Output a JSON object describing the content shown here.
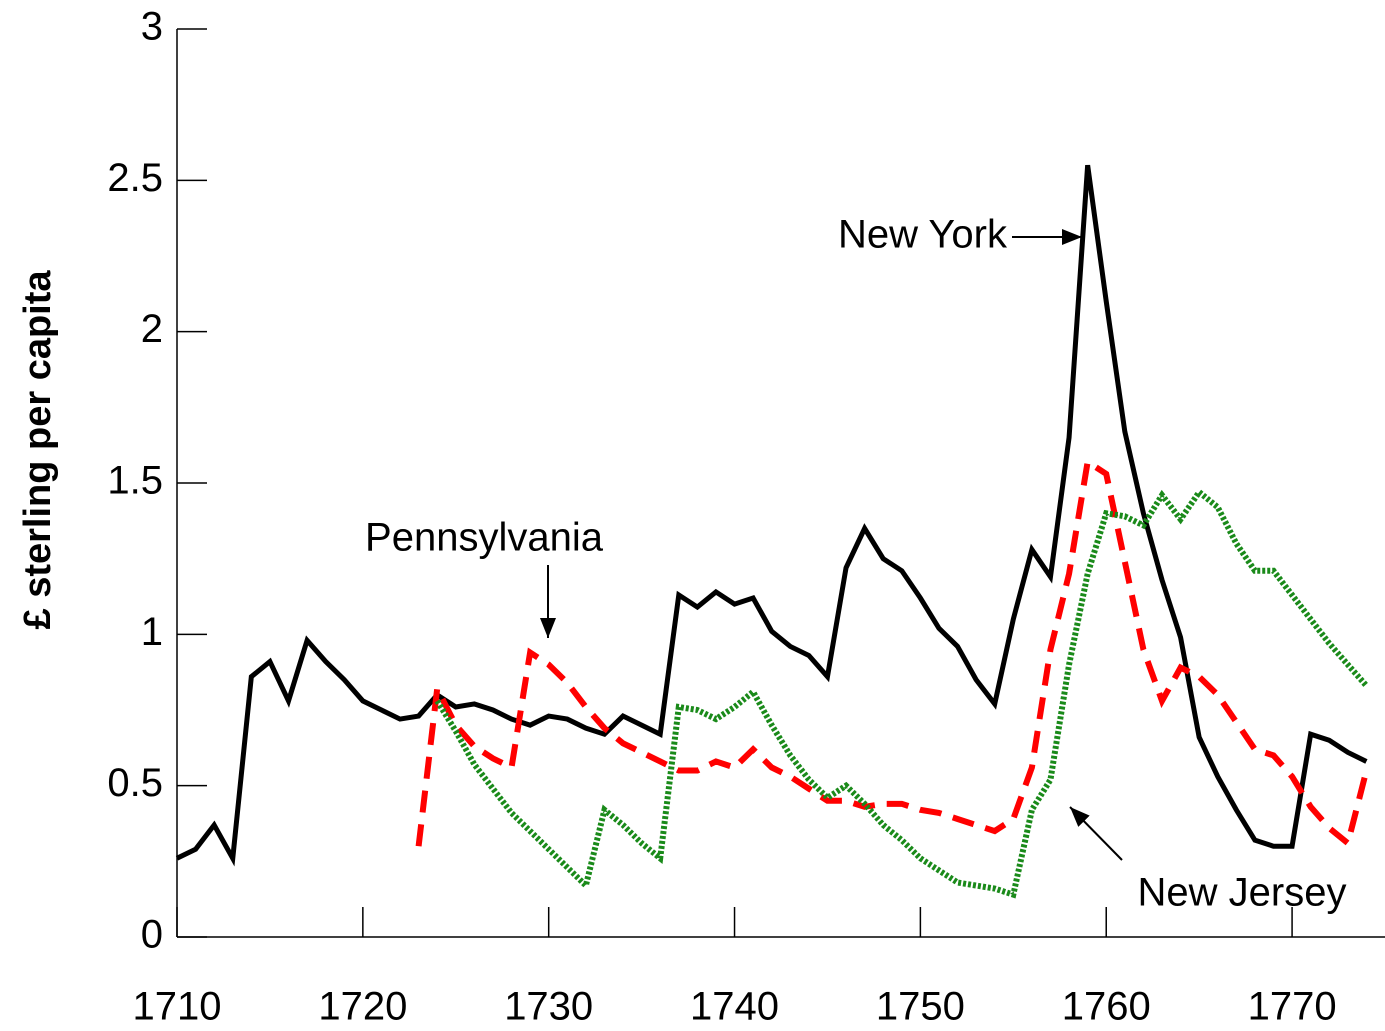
{
  "chart_data": {
    "type": "line",
    "y_label": "£ sterling per capita",
    "x": [
      1710,
      1711,
      1712,
      1713,
      1714,
      1715,
      1716,
      1717,
      1718,
      1719,
      1720,
      1721,
      1722,
      1723,
      1724,
      1725,
      1726,
      1727,
      1728,
      1729,
      1730,
      1731,
      1732,
      1733,
      1734,
      1735,
      1736,
      1737,
      1738,
      1739,
      1740,
      1741,
      1742,
      1743,
      1744,
      1745,
      1746,
      1747,
      1748,
      1749,
      1750,
      1751,
      1752,
      1753,
      1754,
      1755,
      1756,
      1757,
      1758,
      1759,
      1760,
      1761,
      1762,
      1763,
      1764,
      1765,
      1766,
      1767,
      1768,
      1769,
      1770,
      1771,
      1772,
      1773,
      1774
    ],
    "series": [
      {
        "color": "#000000",
        "dash": "solid",
        "values": [
          0.26,
          0.29,
          0.37,
          0.26,
          0.86,
          0.91,
          0.78,
          0.98,
          0.91,
          0.85,
          0.78,
          0.75,
          0.72,
          0.73,
          0.8,
          0.76,
          0.77,
          0.75,
          0.72,
          0.7,
          0.73,
          0.72,
          0.69,
          0.67,
          0.73,
          0.7,
          0.67,
          1.13,
          1.09,
          1.14,
          1.1,
          1.12,
          1.01,
          0.96,
          0.93,
          0.86,
          1.22,
          1.35,
          1.25,
          1.21,
          1.12,
          1.02,
          0.96,
          0.85,
          0.77,
          1.05,
          1.28,
          1.19,
          1.65,
          2.55,
          2.1,
          1.67,
          1.4,
          1.18,
          0.99,
          0.66,
          0.53,
          0.42,
          0.32,
          0.3,
          0.3,
          0.67,
          0.65,
          0.61,
          0.58
        ]
      },
      {
        "color": "#ff0000",
        "dash": "dashed",
        "values": [
          null,
          null,
          null,
          null,
          null,
          null,
          null,
          null,
          null,
          null,
          null,
          null,
          null,
          0.3,
          0.82,
          0.7,
          0.63,
          0.59,
          0.56,
          0.94,
          0.9,
          0.84,
          0.76,
          0.69,
          0.64,
          0.61,
          0.58,
          0.55,
          0.55,
          0.58,
          0.56,
          0.62,
          0.56,
          0.53,
          0.49,
          0.45,
          0.45,
          0.43,
          0.44,
          0.44,
          0.42,
          0.41,
          0.39,
          0.37,
          0.35,
          0.39,
          0.56,
          0.95,
          1.2,
          1.57,
          1.53,
          1.24,
          0.95,
          0.78,
          0.89,
          0.86,
          0.8,
          0.71,
          0.62,
          0.6,
          0.53,
          0.43,
          0.36,
          0.31,
          0.55
        ]
      },
      {
        "color": "#1a8a1a",
        "dash": "dotted",
        "values": [
          null,
          null,
          null,
          null,
          null,
          null,
          null,
          null,
          null,
          null,
          null,
          null,
          null,
          null,
          0.78,
          0.68,
          0.57,
          0.49,
          0.41,
          0.35,
          0.29,
          0.23,
          0.17,
          0.42,
          0.37,
          0.31,
          0.26,
          0.76,
          0.75,
          0.72,
          0.76,
          0.81,
          0.7,
          0.6,
          0.52,
          0.46,
          0.5,
          0.44,
          0.37,
          0.32,
          0.26,
          0.22,
          0.18,
          0.17,
          0.16,
          0.14,
          0.42,
          0.52,
          0.9,
          1.2,
          1.4,
          1.39,
          1.36,
          1.46,
          1.38,
          1.47,
          1.42,
          1.3,
          1.21,
          1.21,
          1.13,
          1.05,
          0.97,
          0.9,
          0.83
        ]
      }
    ],
    "annotations": [
      "New York",
      "Pennsylvania",
      "New Jersey"
    ],
    "xlim": [
      1710,
      1775
    ],
    "xticks": [
      1710,
      1720,
      1730,
      1740,
      1750,
      1760,
      1770
    ],
    "ylim": [
      0,
      3
    ],
    "yticks": [
      0,
      0.5,
      1,
      1.5,
      2,
      2.5,
      3
    ]
  }
}
